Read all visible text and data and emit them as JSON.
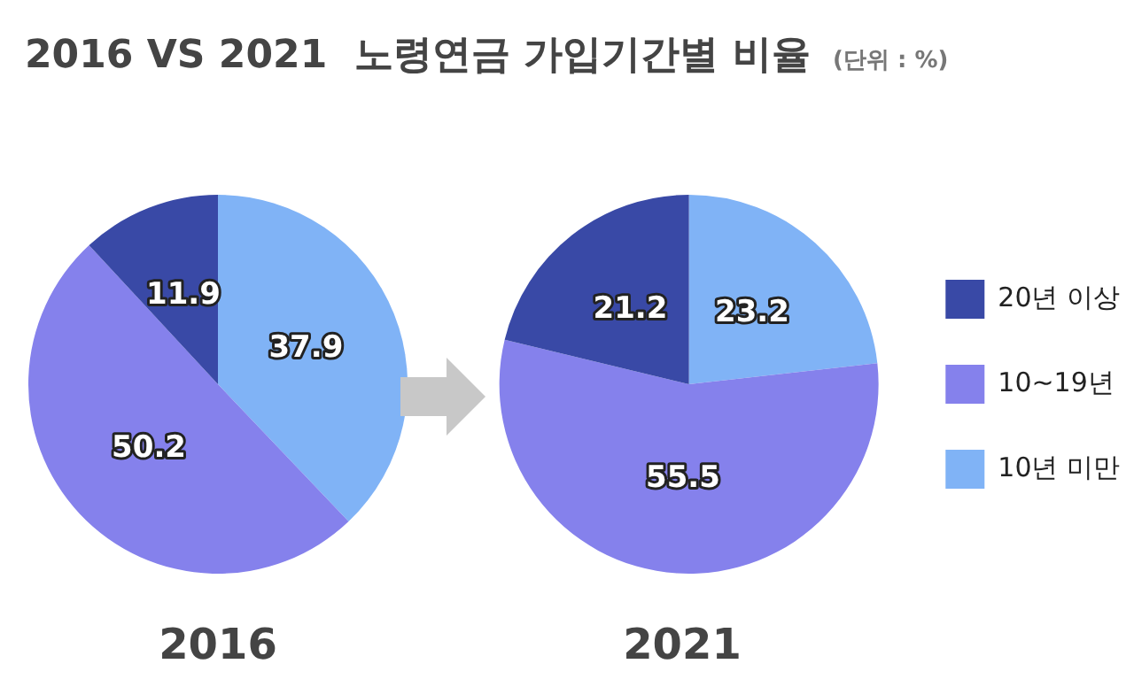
{
  "chart_data": [
    {
      "type": "pie",
      "title": "2016 VS 2021  노령연금 가입기간별 비율",
      "xlabel": "2016",
      "categories": [
        null,
        null,
        null
      ],
      "values": [
        11.9,
        50.2,
        37.9
      ],
      "colors": [
        "#3949a6",
        "#8581ec",
        "#80b3f6"
      ],
      "data_labels": true,
      "legend": false
    },
    {
      "type": "pie",
      "subtitle": "(단위 : %)",
      "xlabel": "2021",
      "categories": [
        "20년 이상",
        "10~19년",
        "10년 미만"
      ],
      "values": [
        21.2,
        55.5,
        23.2
      ],
      "colors": [
        "#3949a6",
        "#8581ec",
        "#80b3f6"
      ],
      "data_labels": true,
      "legend": "right"
    }
  ]
}
